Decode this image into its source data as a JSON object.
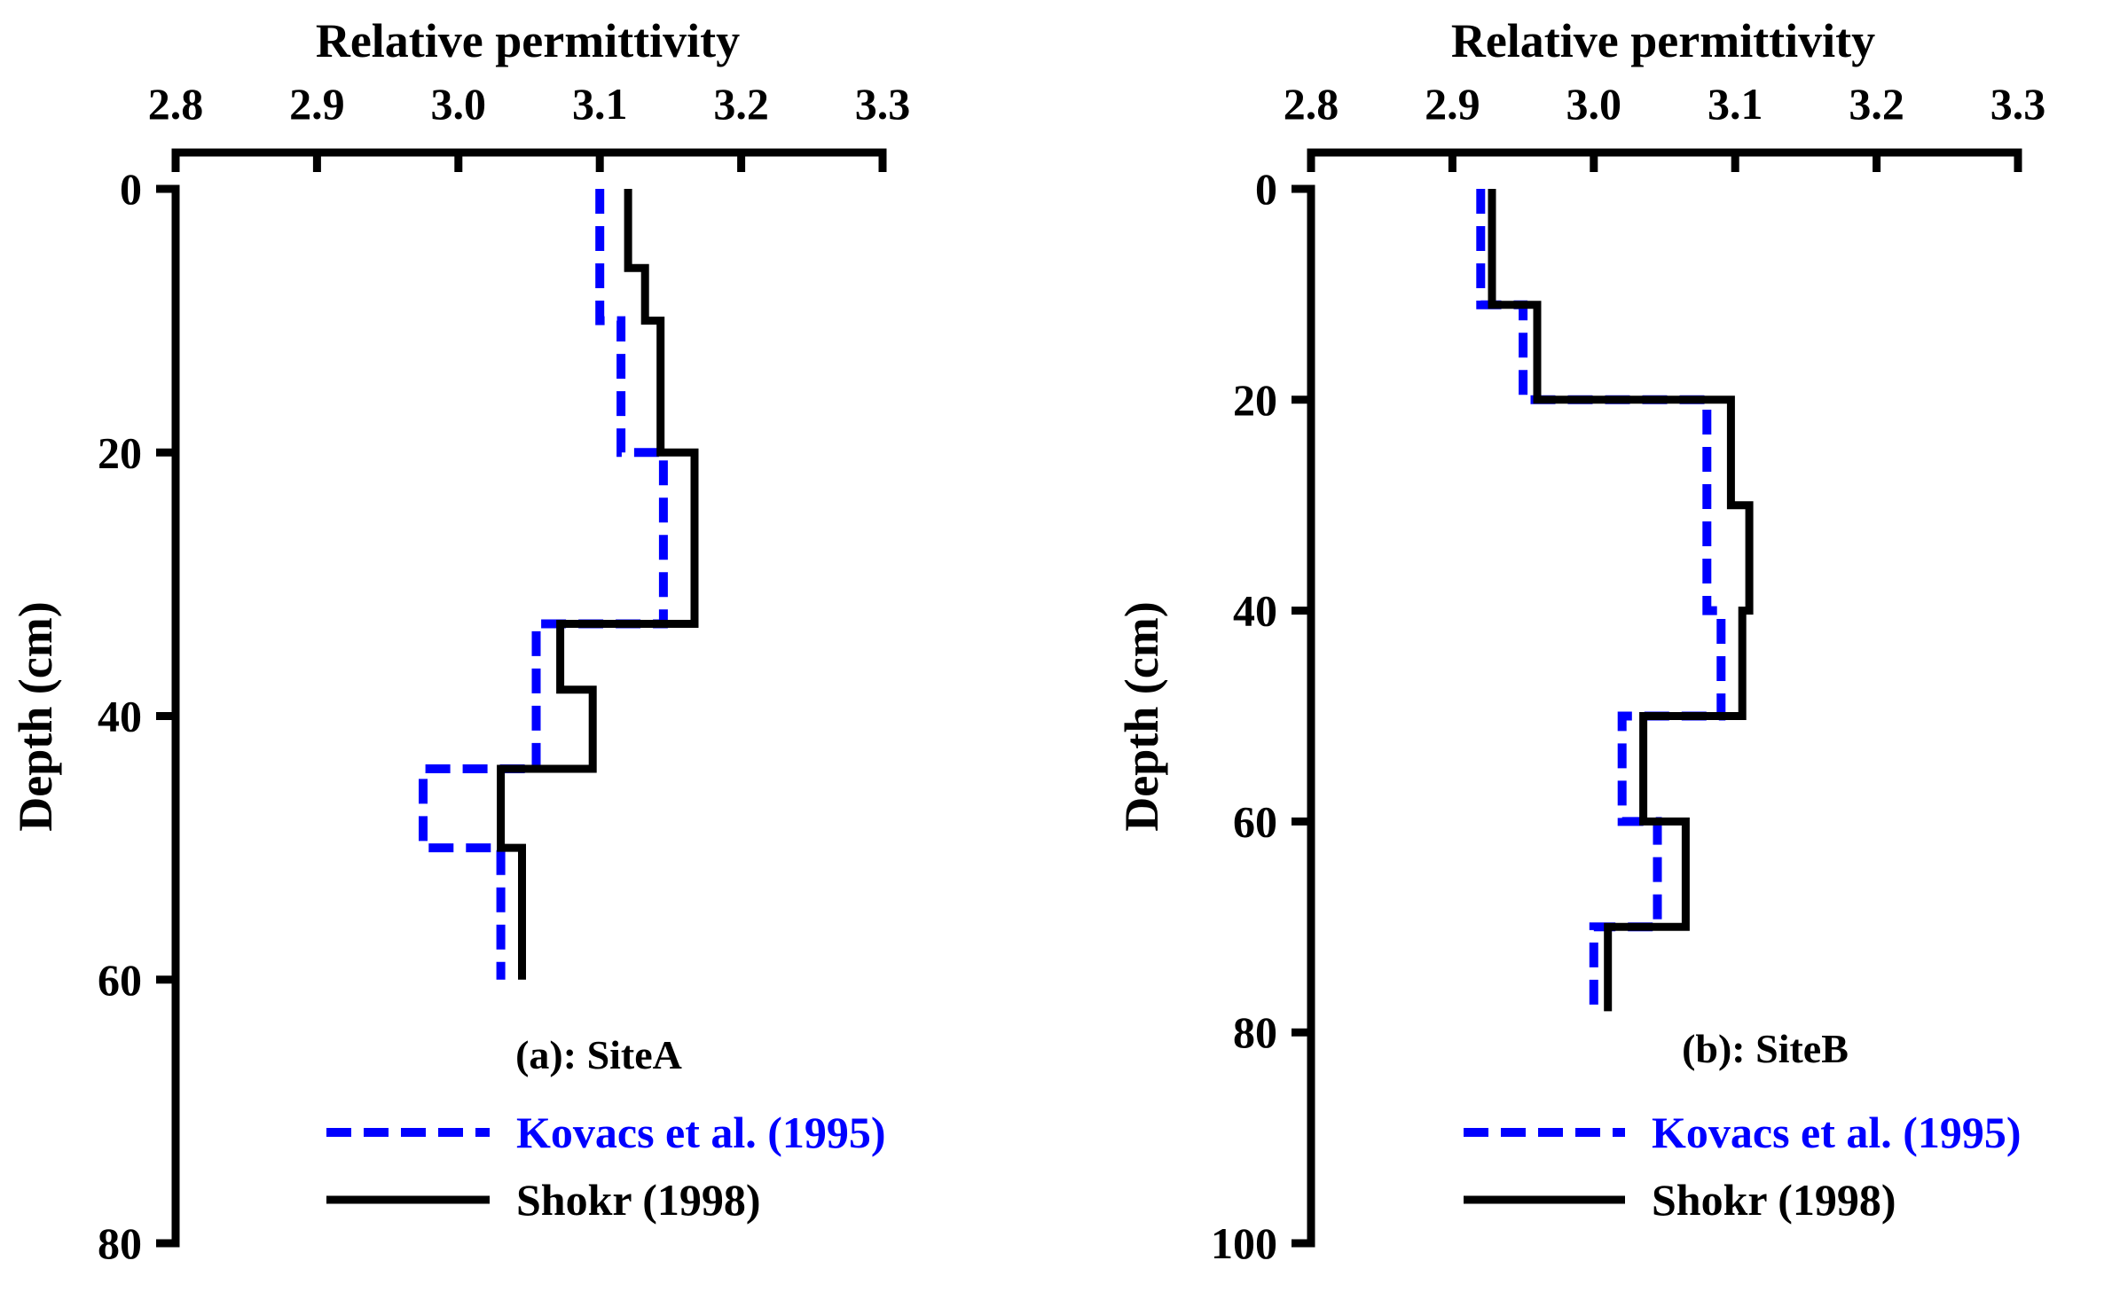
{
  "colors": {
    "axis": "#000000",
    "kovacs": "#0000ff",
    "shokr": "#000000"
  },
  "chart_data": [
    {
      "type": "line",
      "panel_label": "(a): SiteA",
      "xlabel": "Relative permittivity",
      "ylabel": "Depth (cm)",
      "xlim": [
        2.8,
        3.3
      ],
      "ylim": [
        0,
        80
      ],
      "x_ticks": [
        2.8,
        2.9,
        3.0,
        3.1,
        3.2,
        3.3
      ],
      "x_tick_labels": [
        "2.8",
        "2.9",
        "3.0",
        "3.1",
        "3.2",
        "3.3"
      ],
      "y_ticks": [
        0,
        20,
        40,
        60,
        80
      ],
      "y_tick_labels": [
        "0",
        "20",
        "40",
        "60",
        "80"
      ],
      "legend": [
        "Kovacs et al. (1995)",
        "Shokr (1998)"
      ],
      "series": [
        {
          "name": "Kovacs et al. (1995)",
          "style": "dashed",
          "x": [
            3.1,
            3.1,
            3.115,
            3.115,
            3.145,
            3.145,
            3.055,
            3.055,
            2.975,
            2.975,
            3.03,
            3.03
          ],
          "y": [
            0,
            10,
            10,
            20,
            20,
            33,
            33,
            44,
            44,
            50,
            50,
            60
          ]
        },
        {
          "name": "Shokr (1998)",
          "style": "solid",
          "x": [
            3.12,
            3.12,
            3.132,
            3.132,
            3.143,
            3.143,
            3.167,
            3.167,
            3.072,
            3.072,
            3.095,
            3.095,
            3.03,
            3.03,
            3.045,
            3.045
          ],
          "y": [
            0,
            6,
            6,
            10,
            10,
            20,
            20,
            33,
            33,
            38,
            38,
            44,
            44,
            50,
            50,
            60
          ]
        }
      ]
    },
    {
      "type": "line",
      "panel_label": "(b): SiteB",
      "xlabel": "Relative permittivity",
      "ylabel": "Depth (cm)",
      "xlim": [
        2.8,
        3.3
      ],
      "ylim": [
        0,
        100
      ],
      "x_ticks": [
        2.8,
        2.9,
        3.0,
        3.1,
        3.2,
        3.3
      ],
      "x_tick_labels": [
        "2.8",
        "2.9",
        "3.0",
        "3.1",
        "3.2",
        "3.3"
      ],
      "y_ticks": [
        0,
        20,
        40,
        60,
        80,
        100
      ],
      "y_tick_labels": [
        "0",
        "20",
        "40",
        "60",
        "80",
        "100"
      ],
      "legend": [
        "Kovacs et al. (1995)",
        "Shokr (1998)"
      ],
      "series": [
        {
          "name": "Kovacs et al. (1995)",
          "style": "dashed",
          "x": [
            2.92,
            2.92,
            2.95,
            2.95,
            3.08,
            3.08,
            3.09,
            3.09,
            3.02,
            3.02,
            3.045,
            3.045,
            3.0,
            3.0
          ],
          "y": [
            0,
            11,
            11,
            20,
            20,
            40,
            40,
            50,
            50,
            60,
            60,
            70,
            70,
            78
          ]
        },
        {
          "name": "Shokr (1998)",
          "style": "solid",
          "x": [
            2.928,
            2.928,
            2.96,
            2.96,
            3.097,
            3.097,
            3.11,
            3.11,
            3.105,
            3.105,
            3.035,
            3.035,
            3.065,
            3.065,
            3.01,
            3.01
          ],
          "y": [
            0,
            11,
            11,
            20,
            20,
            30,
            30,
            40,
            40,
            50,
            50,
            60,
            60,
            70,
            70,
            78
          ]
        }
      ]
    }
  ]
}
